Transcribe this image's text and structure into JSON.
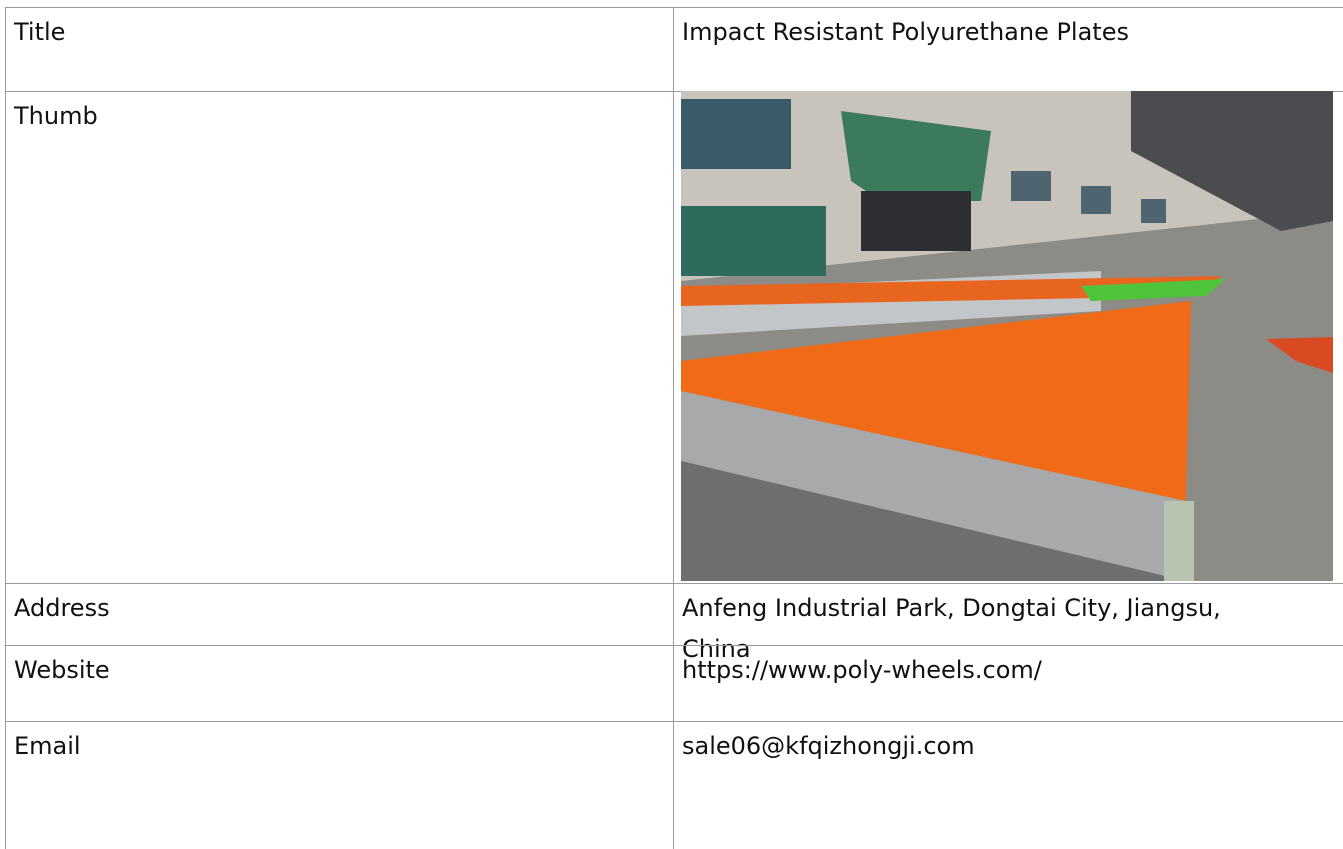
{
  "table": {
    "rows": [
      [
        "Title",
        "Impact Resistant Polyurethane Plates"
      ],
      [
        "Thumb"
      ],
      [
        "Address",
        "Anfeng Industrial Park, Dongtai City, Jiangsu, China"
      ],
      [
        "Website",
        "https://www.poly-wheels.com/"
      ],
      [
        "Email",
        "sale06@kfqizhongji.com"
      ]
    ]
  }
}
